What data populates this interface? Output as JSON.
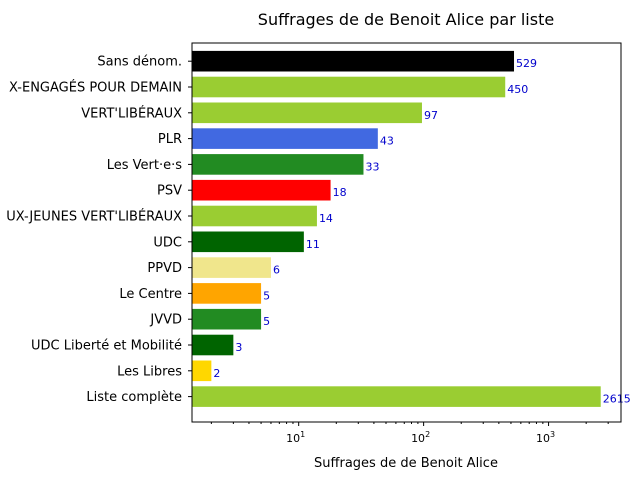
{
  "chart_data": {
    "type": "bar",
    "orientation": "horizontal",
    "title": "Suffrages de de Benoit Alice par liste",
    "xlabel": "Suffrages de de Benoit Alice",
    "ylabel": "",
    "xscale": "log",
    "xlim": [
      1.4,
      3800
    ],
    "grid": false,
    "xticks": [
      10,
      100,
      1000
    ],
    "xtick_labels": [
      {
        "base": "10",
        "exp": "1"
      },
      {
        "base": "10",
        "exp": "2"
      },
      {
        "base": "10",
        "exp": "3"
      }
    ],
    "categories": [
      "Sans dénom.",
      "JEUNES-VERTS-VERTES-JEUNES-VERT'LIBÉRAUX-ENGAGÉS POUR DEMAIN",
      "VERT'LIBÉRAUX",
      "PLR",
      "Les Vert·e·s",
      "PSV",
      "JEUNES-VERTS-VERTES-JEUNES-VERT'LIBÉRAUX-JEUNES VERT'LIBÉRAUX",
      "UDC",
      "PPVD",
      "Le Centre",
      "JVVD",
      "UDC Liberté et Mobilité",
      "Les Libres",
      "Liste complète"
    ],
    "category_display": [
      "Sans dénom.",
      "X-ENGAGÉS POUR DEMAIN",
      "VERT'LIBÉRAUX",
      "PLR",
      "Les Vert·e·s",
      "PSV",
      "UX-JEUNES VERT'LIBÉRAUX",
      "UDC",
      "PPVD",
      "Le Centre",
      "JVVD",
      "UDC Liberté et Mobilité",
      "Les Libres",
      "Liste complète"
    ],
    "values": [
      529,
      450,
      97,
      43,
      33,
      18,
      14,
      11,
      6,
      5,
      5,
      3,
      2,
      2615
    ],
    "value_labels": [
      "529",
      "450",
      "97",
      "43",
      "33",
      "18",
      "14",
      "11",
      "6",
      "5",
      "5",
      "3",
      "2",
      "2615"
    ],
    "colors": [
      "#000000",
      "#9acd32",
      "#9acd32",
      "#4169e1",
      "#228b22",
      "#ff0000",
      "#9acd32",
      "#006400",
      "#f0e68c",
      "#ffa500",
      "#228b22",
      "#006400",
      "#ffd700",
      "#9acd32"
    ]
  }
}
